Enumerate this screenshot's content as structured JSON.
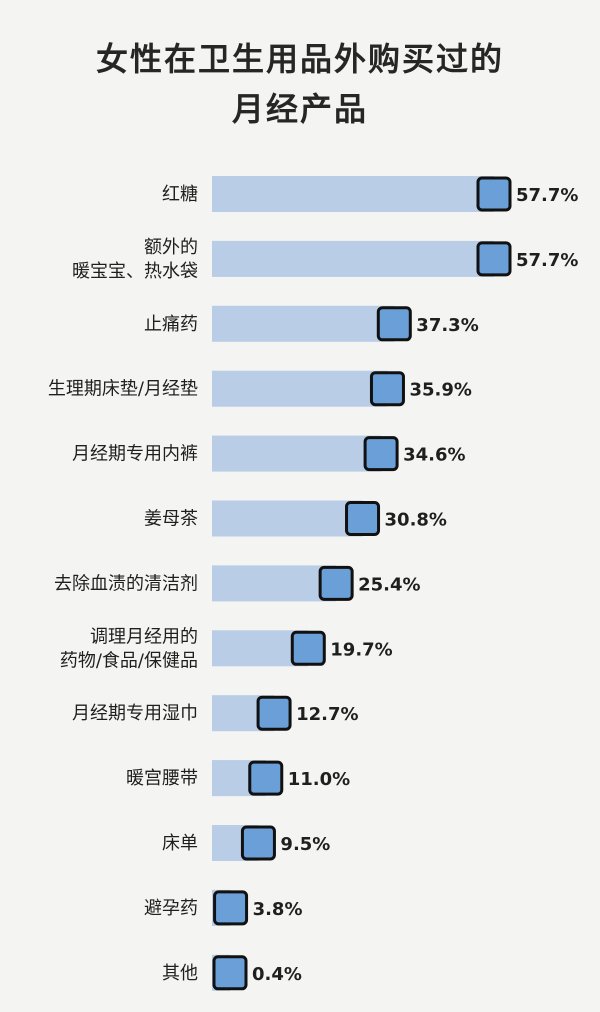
{
  "chart_data": {
    "type": "bar",
    "orientation": "horizontal",
    "title_lines": [
      "女性在卫生用品外购买过的",
      "月经产品"
    ],
    "categories": [
      [
        "红糖"
      ],
      [
        "额外的",
        "暖宝宝、热水袋"
      ],
      [
        "止痛药"
      ],
      [
        "生理期床垫/月经垫"
      ],
      [
        "月经期专用内裤"
      ],
      [
        "姜母茶"
      ],
      [
        "去除血渍的清洁剂"
      ],
      [
        "调理月经用的",
        "药物/食品/保健品"
      ],
      [
        "月经期专用湿巾"
      ],
      [
        "暖宫腰带"
      ],
      [
        "床单"
      ],
      [
        "避孕药"
      ],
      [
        "其他"
      ]
    ],
    "values": [
      57.7,
      57.7,
      37.3,
      35.9,
      34.6,
      30.8,
      25.4,
      19.7,
      12.7,
      11.0,
      9.5,
      3.8,
      0.4
    ],
    "value_labels": [
      "57.7%",
      "57.7%",
      "37.3%",
      "35.9%",
      "34.6%",
      "30.8%",
      "25.4%",
      "19.7%",
      "12.7%",
      "11.0%",
      "9.5%",
      "3.8%",
      "0.4%"
    ],
    "unit": "%",
    "xlim": [
      0,
      57.7
    ],
    "grid": false,
    "legend": "none",
    "colors": {
      "bar": "#b9cde6",
      "marker_fill": "#6a9fd8",
      "marker_stroke": "#111111"
    }
  }
}
